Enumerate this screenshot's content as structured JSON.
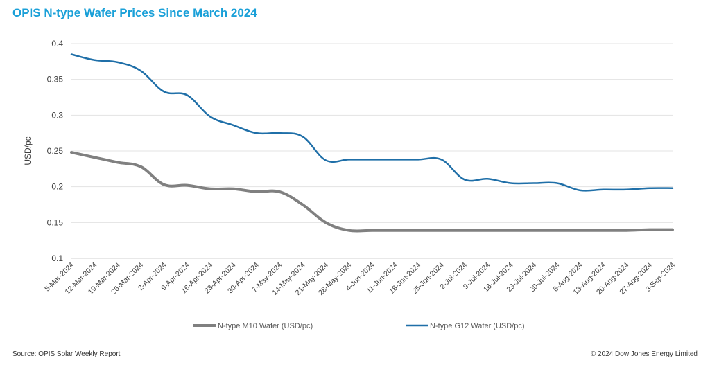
{
  "title": "OPIS  N-type Wafer Prices Since March 2024",
  "source": "Source: OPIS Solar Weekly Report",
  "copyright": "© 2024 Dow Jones Energy Limited",
  "chart_data": {
    "type": "line",
    "title": "OPIS  N-type Wafer Prices Since March 2024",
    "xlabel": "",
    "ylabel": "USD/pc",
    "ylim": [
      0.1,
      0.4
    ],
    "yticks": [
      "0.1",
      "0.15",
      "0.2",
      "0.25",
      "0.3",
      "0.35",
      "0.4"
    ],
    "grid": true,
    "legend_position": "bottom",
    "categories": [
      "5-Mar-2024",
      "12-Mar-2024",
      "19-Mar-2024",
      "26-Mar-2024",
      "2-Apr-2024",
      "9-Apr-2024",
      "16-Apr-2024",
      "23-Apr-2024",
      "30-Apr-2024",
      "7-May-2024",
      "14-May-2024",
      "21-May-2024",
      "28-May-2024",
      "4-Jun-2024",
      "11-Jun-2024",
      "18-Jun-2024",
      "25-Jun-2024",
      "2-Jul-2024",
      "9-Jul-2024",
      "16-Jul-2024",
      "23-Jul-2024",
      "30-Jul-2024",
      "6-Aug-2024",
      "13-Aug-2024",
      "20-Aug-2024",
      "27-Aug-2024",
      "3-Sep-2024"
    ],
    "series": [
      {
        "name": "N-type M10 Wafer (USD/pc)",
        "color": "#808080",
        "values": [
          0.248,
          0.241,
          0.234,
          0.228,
          0.203,
          0.202,
          0.197,
          0.197,
          0.193,
          0.193,
          0.175,
          0.15,
          0.139,
          0.139,
          0.139,
          0.139,
          0.139,
          0.139,
          0.139,
          0.139,
          0.139,
          0.139,
          0.139,
          0.139,
          0.139,
          0.14,
          0.14
        ]
      },
      {
        "name": "N-type G12 Wafer (USD/pc)",
        "color": "#1f6fa8",
        "values": [
          0.385,
          0.377,
          0.374,
          0.362,
          0.333,
          0.328,
          0.298,
          0.286,
          0.275,
          0.275,
          0.27,
          0.237,
          0.238,
          0.238,
          0.238,
          0.238,
          0.238,
          0.21,
          0.211,
          0.205,
          0.205,
          0.205,
          0.195,
          0.196,
          0.196,
          0.198,
          0.198
        ]
      }
    ]
  }
}
